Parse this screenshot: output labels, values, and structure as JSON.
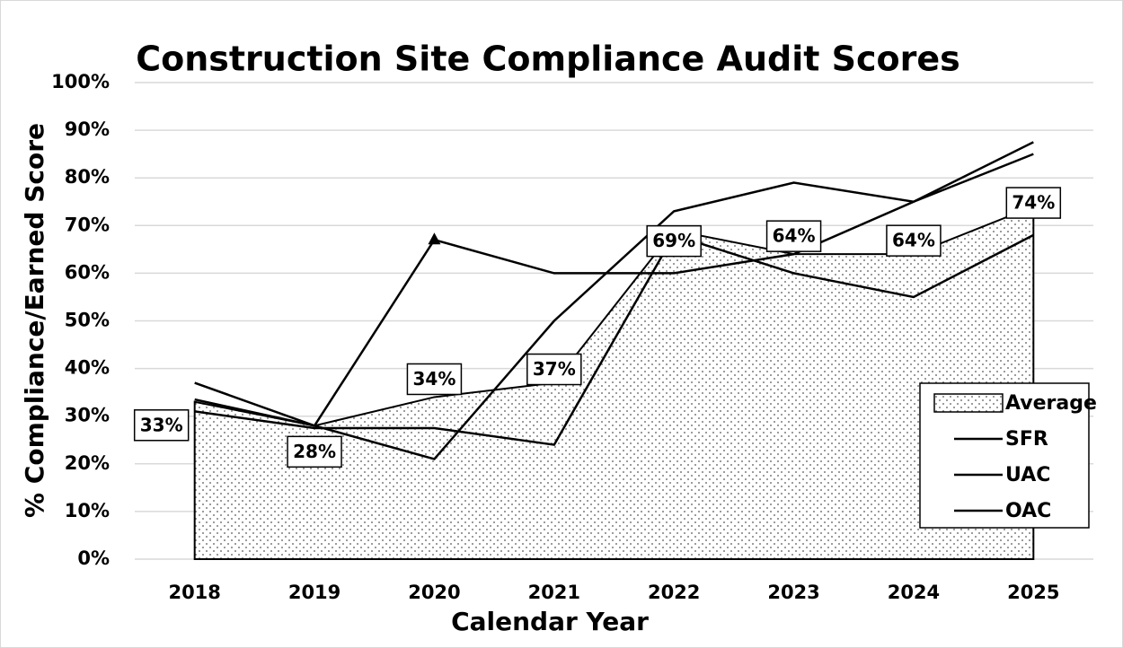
{
  "chart_data": {
    "type": "line",
    "title": "Construction Site Compliance Audit Scores",
    "x_label": "Calendar Year",
    "y_label": "% Compliance/Earned Score",
    "categories": [
      "2018",
      "2019",
      "2020",
      "2021",
      "2022",
      "2023",
      "2024",
      "2025"
    ],
    "series": [
      {
        "name": "Average",
        "type": "area",
        "color": "#000000",
        "values": [
          33,
          28,
          34,
          37,
          69,
          64,
          64,
          74
        ],
        "value_labels": [
          "33%",
          "28%",
          "34%",
          "37%",
          "69%",
          "64%",
          "64%",
          "74%"
        ]
      },
      {
        "name": "SFR",
        "color": "#000000",
        "values": [
          37,
          28,
          21,
          50,
          73,
          79,
          75,
          85
        ]
      },
      {
        "name": "UAC",
        "color": "#000000",
        "values": [
          33.5,
          28,
          67,
          60,
          60,
          64,
          75,
          87.5
        ]
      },
      {
        "name": "OAC",
        "color": "#000000",
        "values": [
          31,
          27.5,
          27.5,
          24,
          68,
          60,
          55,
          68
        ]
      }
    ],
    "markers": [
      {
        "series": 2,
        "index": 2,
        "shape": "triangle"
      }
    ],
    "ylim": [
      0,
      100
    ],
    "yticks": [
      {
        "value": 0,
        "label": "0%"
      },
      {
        "value": 10,
        "label": "10%"
      },
      {
        "value": 20,
        "label": "20%"
      },
      {
        "value": 30,
        "label": "30%"
      },
      {
        "value": 40,
        "label": "40%"
      },
      {
        "value": 50,
        "label": "50%"
      },
      {
        "value": 60,
        "label": "60%"
      },
      {
        "value": 70,
        "label": "70%"
      },
      {
        "value": 80,
        "label": "80%"
      },
      {
        "value": 90,
        "label": "90%"
      },
      {
        "value": 100,
        "label": "100%"
      }
    ],
    "grid": true,
    "legend": "lower right"
  }
}
